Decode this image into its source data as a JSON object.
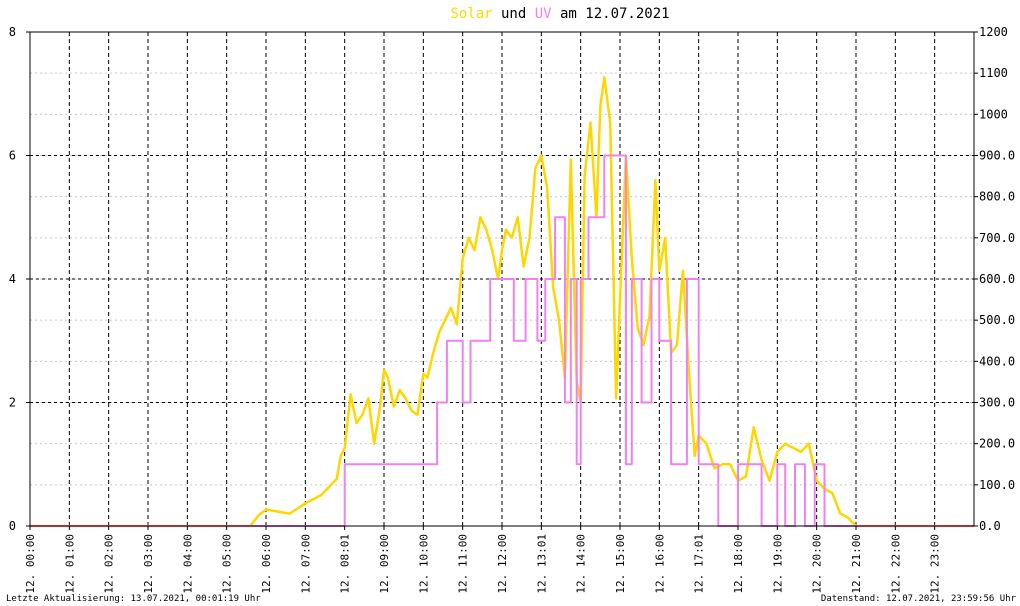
{
  "chart_data": {
    "type": "line",
    "title": {
      "part1": "Solar",
      "part2": " und ",
      "part3": "UV",
      "part4": " am 12.07.2021"
    },
    "x_tick_labels": [
      "12. 00:00",
      "12. 01:00",
      "12. 02:00",
      "12. 03:00",
      "12. 04:00",
      "12. 05:00",
      "12. 06:00",
      "12. 07:00",
      "12. 08:01",
      "12. 09:00",
      "12. 10:00",
      "12. 11:00",
      "12. 12:00",
      "12. 13:01",
      "12. 14:00",
      "12. 15:00",
      "12. 16:00",
      "12. 17:01",
      "12. 18:00",
      "12. 19:00",
      "12. 20:00",
      "12. 21:00",
      "12. 22:00",
      "12. 23:00"
    ],
    "x_range_hours": [
      0,
      24
    ],
    "y_left": {
      "range": [
        0,
        8
      ],
      "ticks": [
        "0",
        "2",
        "4",
        "6",
        "8"
      ]
    },
    "y_right": {
      "range": [
        0,
        1200
      ],
      "ticks": [
        "0.0",
        "100.0",
        "200.0",
        "300.0",
        "400.0",
        "500.0",
        "600.0",
        "700.0",
        "800.0",
        "900.0",
        "1000",
        "1100",
        "1200"
      ]
    },
    "grid": true,
    "series": [
      {
        "name": "Solar",
        "axis": "right",
        "color": "#ffd700",
        "x": [
          0,
          5.6,
          5.8,
          6.0,
          6.3,
          6.6,
          7.0,
          7.4,
          7.8,
          7.9,
          8.0,
          8.15,
          8.3,
          8.45,
          8.6,
          8.75,
          8.9,
          9.0,
          9.1,
          9.25,
          9.4,
          9.55,
          9.7,
          9.85,
          10.0,
          10.1,
          10.25,
          10.4,
          10.55,
          10.7,
          10.85,
          11.0,
          11.15,
          11.3,
          11.45,
          11.6,
          11.75,
          11.9,
          12.0,
          12.1,
          12.25,
          12.4,
          12.55,
          12.7,
          12.85,
          13.0,
          13.15,
          13.3,
          13.45,
          13.6,
          13.75,
          13.9,
          14.0,
          14.1,
          14.25,
          14.4,
          14.5,
          14.6,
          14.75,
          14.9,
          15.0,
          15.15,
          15.3,
          15.45,
          15.6,
          15.75,
          15.9,
          16.0,
          16.15,
          16.3,
          16.45,
          16.6,
          16.75,
          16.9,
          17.0,
          17.2,
          17.4,
          17.6,
          17.8,
          18.0,
          18.2,
          18.4,
          18.6,
          18.8,
          19.0,
          19.2,
          19.4,
          19.6,
          19.8,
          20.0,
          20.2,
          20.4,
          20.6,
          20.8,
          21.0,
          21.2,
          24
        ],
        "y": [
          0,
          0,
          25,
          40,
          35,
          30,
          55,
          75,
          115,
          170,
          190,
          320,
          250,
          270,
          310,
          200,
          290,
          380,
          360,
          290,
          330,
          310,
          280,
          270,
          370,
          360,
          420,
          470,
          500,
          530,
          490,
          650,
          700,
          670,
          750,
          720,
          670,
          600,
          670,
          720,
          700,
          750,
          630,
          700,
          870,
          900,
          820,
          580,
          500,
          360,
          890,
          350,
          300,
          850,
          980,
          750,
          1020,
          1090,
          980,
          310,
          550,
          900,
          650,
          480,
          440,
          510,
          840,
          620,
          700,
          420,
          440,
          620,
          380,
          170,
          220,
          200,
          140,
          150,
          150,
          110,
          120,
          240,
          160,
          110,
          180,
          200,
          190,
          180,
          200,
          110,
          90,
          80,
          30,
          20,
          0,
          0,
          0
        ],
        "y_note": "values in W/m² read on right axis"
      },
      {
        "name": "UV",
        "axis": "left",
        "color": "#ee82ee",
        "x": [
          0,
          7.9,
          8.0,
          8.45,
          9.0,
          9.5,
          10.0,
          10.35,
          10.6,
          11.0,
          11.2,
          11.5,
          11.7,
          12.0,
          12.3,
          12.6,
          12.9,
          13.1,
          13.35,
          13.6,
          13.75,
          13.9,
          14.0,
          14.2,
          14.45,
          14.6,
          14.9,
          15.15,
          15.3,
          15.55,
          15.8,
          16.0,
          16.3,
          16.45,
          16.7,
          17.0,
          17.5,
          17.8,
          18.0,
          18.35,
          18.6,
          18.8,
          19.0,
          19.2,
          19.45,
          19.7,
          19.95,
          20.2,
          21.0,
          24
        ],
        "y": [
          0,
          0,
          1,
          1,
          1,
          1,
          1,
          2,
          3,
          2,
          3,
          3,
          4,
          4,
          3,
          4,
          3,
          4,
          5,
          2,
          4,
          1,
          4,
          5,
          5,
          6,
          6,
          1,
          4,
          2,
          4,
          3,
          1,
          1,
          4,
          1,
          0,
          0,
          1,
          1,
          0,
          0,
          1,
          0,
          1,
          0,
          1,
          0,
          0,
          0
        ],
        "y_note": "UV index read on left axis"
      }
    ],
    "footer_left": "Letzte Aktualisierung: 13.07.2021, 00:01:19 Uhr",
    "footer_right": "Datenstand: 12.07.2021, 23:59:56 Uhr"
  }
}
